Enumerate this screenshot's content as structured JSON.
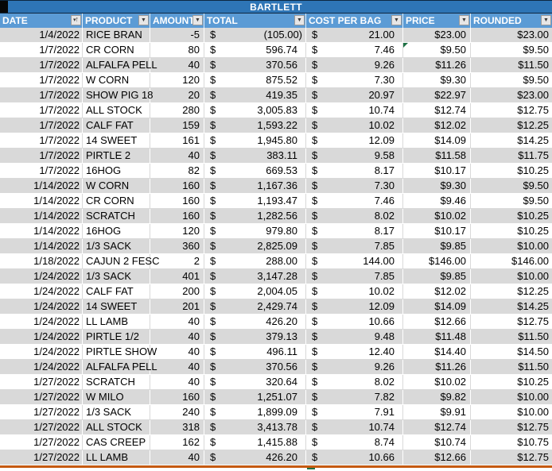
{
  "title": "BARTLETT",
  "colors": {
    "title_bar": "#2E75B6",
    "header_row": "#5B9BD5",
    "band_row": "#D9D9D9",
    "bottom_border": "#C55A11",
    "error_indicator": "#1E7145"
  },
  "columns": [
    {
      "key": "date",
      "label": "DATE",
      "icon": "filter-sort-ascending-icon"
    },
    {
      "key": "product",
      "label": "PRODUCT",
      "icon": "filter-dropdown-icon"
    },
    {
      "key": "amount",
      "label": "AMOUNT",
      "icon": "filter-dropdown-icon"
    },
    {
      "key": "total",
      "label": "TOTAL",
      "icon": "filter-dropdown-icon"
    },
    {
      "key": "cost",
      "label": "COST PER BAG",
      "icon": "filter-dropdown-icon"
    },
    {
      "key": "price",
      "label": "PRICE",
      "icon": "filter-dropdown-icon"
    },
    {
      "key": "rounded",
      "label": "ROUNDED",
      "icon": "filter-dropdown-icon"
    }
  ],
  "rows": [
    {
      "date": "1/4/2022",
      "product": "RICE BRAN",
      "amount": "-5",
      "total": "(105.00)",
      "total_negative": true,
      "cost": "21.00",
      "price": "$23.00",
      "rounded": "$23.00",
      "price_error_flag": false
    },
    {
      "date": "1/7/2022",
      "product": "CR CORN",
      "amount": "80",
      "total": "596.74",
      "total_negative": false,
      "cost": "7.46",
      "price": "$9.50",
      "rounded": "$9.50",
      "price_error_flag": true
    },
    {
      "date": "1/7/2022",
      "product": "ALFALFA PELL",
      "amount": "40",
      "total": "370.56",
      "total_negative": false,
      "cost": "9.26",
      "price": "$11.26",
      "rounded": "$11.50",
      "price_error_flag": false
    },
    {
      "date": "1/7/2022",
      "product": "W CORN",
      "amount": "120",
      "total": "875.52",
      "total_negative": false,
      "cost": "7.30",
      "price": "$9.30",
      "rounded": "$9.50",
      "price_error_flag": false
    },
    {
      "date": "1/7/2022",
      "product": "SHOW PIG 18",
      "amount": "20",
      "total": "419.35",
      "total_negative": false,
      "cost": "20.97",
      "price": "$22.97",
      "rounded": "$23.00",
      "price_error_flag": false
    },
    {
      "date": "1/7/2022",
      "product": "ALL STOCK",
      "amount": "280",
      "total": "3,005.83",
      "total_negative": false,
      "cost": "10.74",
      "price": "$12.74",
      "rounded": "$12.75",
      "price_error_flag": false
    },
    {
      "date": "1/7/2022",
      "product": "CALF FAT",
      "amount": "159",
      "total": "1,593.22",
      "total_negative": false,
      "cost": "10.02",
      "price": "$12.02",
      "rounded": "$12.25",
      "price_error_flag": false
    },
    {
      "date": "1/7/2022",
      "product": "14 SWEET",
      "amount": "161",
      "total": "1,945.80",
      "total_negative": false,
      "cost": "12.09",
      "price": "$14.09",
      "rounded": "$14.25",
      "price_error_flag": false
    },
    {
      "date": "1/7/2022",
      "product": "PIRTLE 2",
      "amount": "40",
      "total": "383.11",
      "total_negative": false,
      "cost": "9.58",
      "price": "$11.58",
      "rounded": "$11.75",
      "price_error_flag": false
    },
    {
      "date": "1/7/2022",
      "product": "16HOG",
      "amount": "82",
      "total": "669.53",
      "total_negative": false,
      "cost": "8.17",
      "price": "$10.17",
      "rounded": "$10.25",
      "price_error_flag": false
    },
    {
      "date": "1/14/2022",
      "product": "W CORN",
      "amount": "160",
      "total": "1,167.36",
      "total_negative": false,
      "cost": "7.30",
      "price": "$9.30",
      "rounded": "$9.50",
      "price_error_flag": false
    },
    {
      "date": "1/14/2022",
      "product": "CR CORN",
      "amount": "160",
      "total": "1,193.47",
      "total_negative": false,
      "cost": "7.46",
      "price": "$9.46",
      "rounded": "$9.50",
      "price_error_flag": false
    },
    {
      "date": "1/14/2022",
      "product": "SCRATCH",
      "amount": "160",
      "total": "1,282.56",
      "total_negative": false,
      "cost": "8.02",
      "price": "$10.02",
      "rounded": "$10.25",
      "price_error_flag": false
    },
    {
      "date": "1/14/2022",
      "product": "16HOG",
      "amount": "120",
      "total": "979.80",
      "total_negative": false,
      "cost": "8.17",
      "price": "$10.17",
      "rounded": "$10.25",
      "price_error_flag": false
    },
    {
      "date": "1/14/2022",
      "product": "1/3 SACK",
      "amount": "360",
      "total": "2,825.09",
      "total_negative": false,
      "cost": "7.85",
      "price": "$9.85",
      "rounded": "$10.00",
      "price_error_flag": false
    },
    {
      "date": "1/18/2022",
      "product": "CAJUN 2 FESC",
      "amount": "2",
      "total": "288.00",
      "total_negative": false,
      "cost": "144.00",
      "price": "$146.00",
      "rounded": "$146.00",
      "price_error_flag": false
    },
    {
      "date": "1/24/2022",
      "product": "1/3 SACK",
      "amount": "401",
      "total": "3,147.28",
      "total_negative": false,
      "cost": "7.85",
      "price": "$9.85",
      "rounded": "$10.00",
      "price_error_flag": false
    },
    {
      "date": "1/24/2022",
      "product": "CALF FAT",
      "amount": "200",
      "total": "2,004.05",
      "total_negative": false,
      "cost": "10.02",
      "price": "$12.02",
      "rounded": "$12.25",
      "price_error_flag": false
    },
    {
      "date": "1/24/2022",
      "product": "14 SWEET",
      "amount": "201",
      "total": "2,429.74",
      "total_negative": false,
      "cost": "12.09",
      "price": "$14.09",
      "rounded": "$14.25",
      "price_error_flag": false
    },
    {
      "date": "1/24/2022",
      "product": "LL LAMB",
      "amount": "40",
      "total": "426.20",
      "total_negative": false,
      "cost": "10.66",
      "price": "$12.66",
      "rounded": "$12.75",
      "price_error_flag": false
    },
    {
      "date": "1/24/2022",
      "product": "PIRTLE 1/2",
      "amount": "40",
      "total": "379.13",
      "total_negative": false,
      "cost": "9.48",
      "price": "$11.48",
      "rounded": "$11.50",
      "price_error_flag": false
    },
    {
      "date": "1/24/2022",
      "product": "PIRTLE SHOW",
      "amount": "40",
      "total": "496.11",
      "total_negative": false,
      "cost": "12.40",
      "price": "$14.40",
      "rounded": "$14.50",
      "price_error_flag": false
    },
    {
      "date": "1/24/2022",
      "product": "ALFALFA PELL",
      "amount": "40",
      "total": "370.56",
      "total_negative": false,
      "cost": "9.26",
      "price": "$11.26",
      "rounded": "$11.50",
      "price_error_flag": false
    },
    {
      "date": "1/27/2022",
      "product": "SCRATCH",
      "amount": "40",
      "total": "320.64",
      "total_negative": false,
      "cost": "8.02",
      "price": "$10.02",
      "rounded": "$10.25",
      "price_error_flag": false
    },
    {
      "date": "1/27/2022",
      "product": "W MILO",
      "amount": "160",
      "total": "1,251.07",
      "total_negative": false,
      "cost": "7.82",
      "price": "$9.82",
      "rounded": "$10.00",
      "price_error_flag": false
    },
    {
      "date": "1/27/2022",
      "product": "1/3 SACK",
      "amount": "240",
      "total": "1,899.09",
      "total_negative": false,
      "cost": "7.91",
      "price": "$9.91",
      "rounded": "$10.00",
      "price_error_flag": false
    },
    {
      "date": "1/27/2022",
      "product": "ALL STOCK",
      "amount": "318",
      "total": "3,413.78",
      "total_negative": false,
      "cost": "10.74",
      "price": "$12.74",
      "rounded": "$12.75",
      "price_error_flag": false
    },
    {
      "date": "1/27/2022",
      "product": "CAS CREEP",
      "amount": "162",
      "total": "1,415.88",
      "total_negative": false,
      "cost": "8.74",
      "price": "$10.74",
      "rounded": "$10.75",
      "price_error_flag": false
    },
    {
      "date": "1/27/2022",
      "product": "LL LAMB",
      "amount": "40",
      "total": "426.20",
      "total_negative": false,
      "cost": "10.66",
      "price": "$12.66",
      "rounded": "$12.75",
      "price_error_flag": false
    }
  ],
  "currency_symbol": "$"
}
